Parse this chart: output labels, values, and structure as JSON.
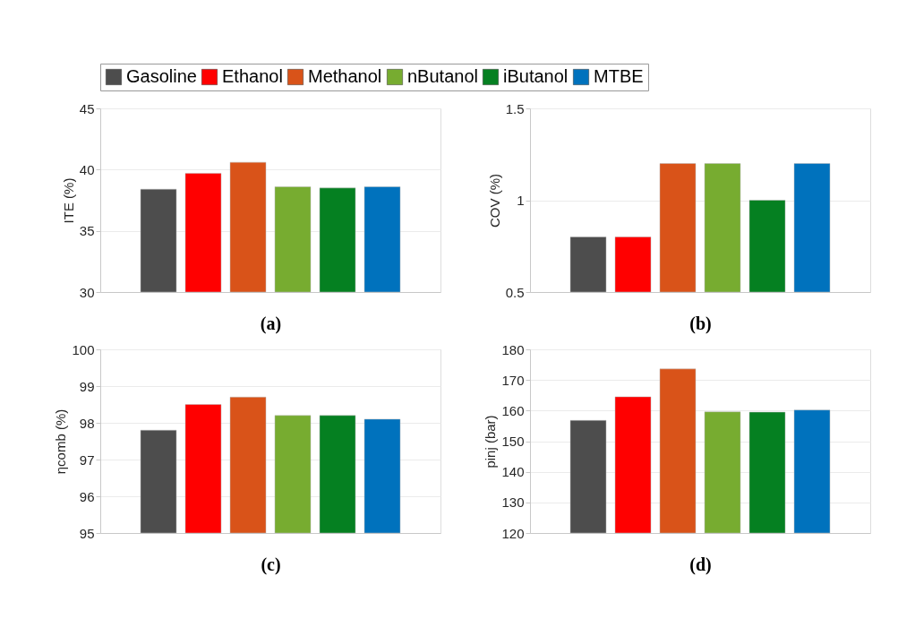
{
  "chart_data": [
    {
      "type": "bar",
      "categories": [
        null
      ],
      "xlabel": "(a)",
      "ylabel": "ITE (%)",
      "ylim": [
        30,
        45
      ],
      "yticks": [
        30,
        35,
        40,
        45
      ],
      "grid": "y",
      "legend": "top",
      "series": [
        {
          "name": "Gasoline",
          "color": "#4d4d4d",
          "values": [
            38.4
          ]
        },
        {
          "name": "Ethanol",
          "color": "#ff0000",
          "values": [
            39.7
          ]
        },
        {
          "name": "Methanol",
          "color": "#d95319",
          "values": [
            40.6
          ]
        },
        {
          "name": "nButanol",
          "color": "#77ac30",
          "values": [
            38.6
          ]
        },
        {
          "name": "iButanol",
          "color": "#058021",
          "values": [
            38.5
          ]
        },
        {
          "name": "MTBE",
          "color": "#0072bd",
          "values": [
            38.6
          ]
        }
      ]
    },
    {
      "type": "bar",
      "categories": [
        null
      ],
      "xlabel": "(b)",
      "ylabel": "COV (%)",
      "ylim": [
        0.5,
        1.5
      ],
      "yticks": [
        0.5,
        1,
        1.5
      ],
      "grid": "y",
      "series": [
        {
          "color": "#4d4d4d",
          "values": [
            0.8
          ]
        },
        {
          "color": "#ff0000",
          "values": [
            0.8
          ]
        },
        {
          "color": "#d95319",
          "values": [
            1.2
          ]
        },
        {
          "color": "#77ac30",
          "values": [
            1.2
          ]
        },
        {
          "color": "#058021",
          "values": [
            1.0
          ]
        },
        {
          "color": "#0072bd",
          "values": [
            1.2
          ]
        }
      ]
    },
    {
      "type": "bar",
      "categories": [
        null
      ],
      "xlabel": "(c)",
      "ylabel": "ηcomb (%)",
      "ylim": [
        95,
        100
      ],
      "yticks": [
        95,
        96,
        97,
        98,
        99,
        100
      ],
      "grid": "y",
      "series": [
        {
          "color": "#4d4d4d",
          "values": [
            97.8
          ]
        },
        {
          "color": "#ff0000",
          "values": [
            98.5
          ]
        },
        {
          "color": "#d95319",
          "values": [
            98.7
          ]
        },
        {
          "color": "#77ac30",
          "values": [
            98.2
          ]
        },
        {
          "color": "#058021",
          "values": [
            98.2
          ]
        },
        {
          "color": "#0072bd",
          "values": [
            98.1
          ]
        }
      ]
    },
    {
      "type": "bar",
      "categories": [
        null
      ],
      "xlabel": "(d)",
      "ylabel": "pinj (bar)",
      "ylim": [
        120,
        180
      ],
      "yticks": [
        120,
        130,
        140,
        150,
        160,
        170,
        180
      ],
      "grid": "y",
      "series": [
        {
          "color": "#4d4d4d",
          "values": [
            156.8
          ]
        },
        {
          "color": "#ff0000",
          "values": [
            164.5
          ]
        },
        {
          "color": "#d95319",
          "values": [
            173.6
          ]
        },
        {
          "color": "#77ac30",
          "values": [
            159.6
          ]
        },
        {
          "color": "#058021",
          "values": [
            159.5
          ]
        },
        {
          "color": "#0072bd",
          "values": [
            160.2
          ]
        }
      ]
    }
  ]
}
